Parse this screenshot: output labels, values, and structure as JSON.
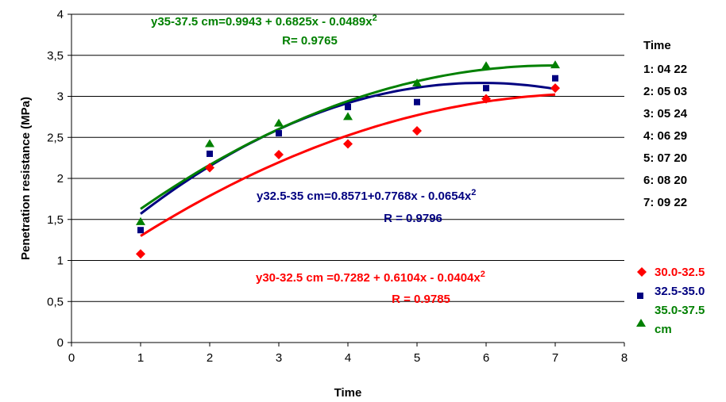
{
  "chart_data": {
    "type": "scatter",
    "xlabel": "Time",
    "ylabel": "Penetration resistance (MPa)",
    "xlim": [
      0,
      8
    ],
    "ylim": [
      0,
      4
    ],
    "x_ticks": [
      "0",
      "1",
      "2",
      "3",
      "4",
      "5",
      "6",
      "7",
      "8"
    ],
    "y_ticks": [
      "0",
      "0,5",
      "1",
      "1,5",
      "2",
      "2,5",
      "3",
      "3,5",
      "4"
    ],
    "grid": "horizontal",
    "series": [
      {
        "name": "30.0-32.5",
        "color": "#ff0000",
        "marker": "diamond",
        "x": [
          1,
          2,
          3,
          4,
          5,
          6,
          7
        ],
        "y": [
          1.08,
          2.13,
          2.29,
          2.42,
          2.58,
          2.97,
          3.1
        ],
        "trend": [
          0.7282,
          0.6104,
          -0.0404
        ]
      },
      {
        "name": "32.5-35.0",
        "color": "#000080",
        "marker": "square",
        "x": [
          1,
          2,
          3,
          4,
          5,
          6,
          7
        ],
        "y": [
          1.37,
          2.3,
          2.55,
          2.87,
          2.93,
          3.1,
          3.22
        ],
        "trend": [
          0.8571,
          0.7768,
          -0.0654
        ]
      },
      {
        "name": "35.0-37.5",
        "color": "#008000",
        "marker": "triangle",
        "x": [
          1,
          2,
          3,
          4,
          5,
          6,
          7
        ],
        "y": [
          1.47,
          2.42,
          2.67,
          2.75,
          3.16,
          3.37,
          3.38
        ],
        "trend": [
          0.9943,
          0.6825,
          -0.0489
        ]
      }
    ],
    "annotations": [
      {
        "series": 2,
        "line1": "y35-37.5 cm=0.9943 + 0.6825x  - 0.0489x",
        "sup": "2",
        "line2": "R= 0.9765"
      },
      {
        "series": 1,
        "line1": "y32.5-35 cm=0.8571+0.7768x - 0.0654x",
        "sup": "2",
        "line2": "R = 0.9796"
      },
      {
        "series": 0,
        "line1": "y30-32.5 cm =0.7282 + 0.6104x - 0.0404x",
        "sup": "2",
        "line2": "R = 0.9785"
      }
    ],
    "time_key": {
      "title": "Time",
      "items": [
        "1: 04 22",
        "2: 05 03",
        "3: 05 24",
        "4: 06 29",
        "5: 07 20",
        "6: 08 20",
        "7: 09 22"
      ]
    },
    "legend": {
      "position": "right",
      "labels": [
        "30.0-32.5",
        "32.5-35.0",
        "35.0-37.5",
        "cm"
      ]
    }
  }
}
